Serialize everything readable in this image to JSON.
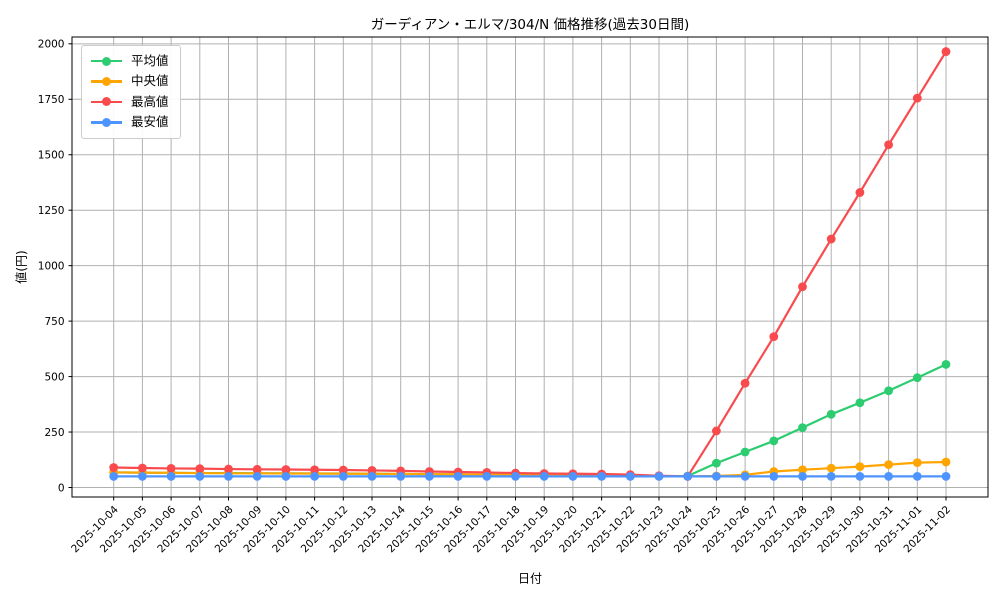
{
  "chart_data": {
    "type": "line",
    "title": "ガーディアン・エルマ/304/N 価格推移(過去30日間)",
    "xlabel": "日付",
    "ylabel": "値(円)",
    "x": [
      "2025-10-04",
      "2025-10-05",
      "2025-10-06",
      "2025-10-07",
      "2025-10-08",
      "2025-10-09",
      "2025-10-10",
      "2025-10-11",
      "2025-10-12",
      "2025-10-13",
      "2025-10-14",
      "2025-10-15",
      "2025-10-16",
      "2025-10-17",
      "2025-10-18",
      "2025-10-19",
      "2025-10-20",
      "2025-10-21",
      "2025-10-22",
      "2025-10-23",
      "2025-10-24",
      "2025-10-25",
      "2025-10-26",
      "2025-10-27",
      "2025-10-28",
      "2025-10-29",
      "2025-10-30",
      "2025-10-31",
      "2025-11-01",
      "2025-11-02"
    ],
    "series": [
      {
        "name": "平均値",
        "color": "#2ecc71",
        "values": [
          68,
          67,
          66,
          65,
          65,
          64,
          64,
          63,
          63,
          62,
          61,
          60,
          59,
          58,
          57,
          56,
          55,
          54,
          53,
          51,
          52,
          110,
          160,
          210,
          270,
          330,
          382,
          436,
          495,
          555
        ]
      },
      {
        "name": "中央値",
        "color": "#ffa502",
        "values": [
          68,
          67,
          66,
          65,
          64,
          64,
          63,
          63,
          62,
          62,
          61,
          60,
          59,
          58,
          57,
          56,
          55,
          54,
          52,
          51,
          50,
          52,
          57,
          72,
          80,
          87,
          94,
          103,
          112,
          115
        ]
      },
      {
        "name": "最高値",
        "color": "#f94b4d",
        "values": [
          90,
          88,
          86,
          85,
          83,
          82,
          81,
          80,
          79,
          77,
          75,
          72,
          70,
          68,
          65,
          63,
          62,
          61,
          58,
          53,
          50,
          255,
          470,
          680,
          905,
          1120,
          1330,
          1545,
          1755,
          1965
        ]
      },
      {
        "name": "最安値",
        "color": "#4d94ff",
        "values": [
          50,
          50,
          50,
          50,
          50,
          50,
          50,
          50,
          50,
          50,
          50,
          50,
          50,
          50,
          50,
          50,
          50,
          50,
          50,
          50,
          50,
          50,
          50,
          50,
          50,
          50,
          50,
          50,
          50,
          50
        ]
      }
    ],
    "yticks": [
      0,
      250,
      500,
      750,
      1000,
      1250,
      1500,
      1750,
      2000
    ],
    "ylim": [
      -43,
      2035
    ],
    "grid": true,
    "legend_position": "upper left",
    "grid_color": "#b0b0b0"
  }
}
